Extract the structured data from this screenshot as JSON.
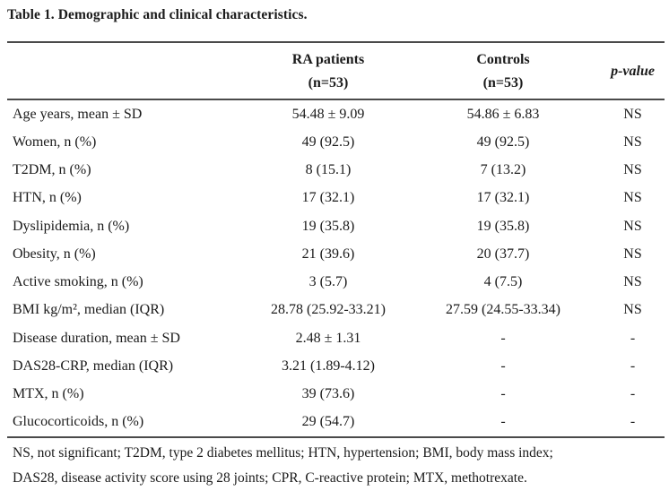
{
  "title": "Table 1. Demographic and clinical characteristics.",
  "table": {
    "header": {
      "col1": "",
      "ra_line1": "RA patients",
      "ra_line2": "(n=53)",
      "controls_line1": "Controls",
      "controls_line2": "(n=53)",
      "p_label": "p-value"
    },
    "rows": [
      {
        "label": "Age years, mean ± SD",
        "ra": "54.48 ± 9.09",
        "controls": "54.86 ± 6.83",
        "p": "NS"
      },
      {
        "label": "Women, n (%)",
        "ra": "49 (92.5)",
        "controls": "49 (92.5)",
        "p": "NS"
      },
      {
        "label": "T2DM, n (%)",
        "ra": "8 (15.1)",
        "controls": "7 (13.2)",
        "p": "NS"
      },
      {
        "label": "HTN, n (%)",
        "ra": "17 (32.1)",
        "controls": "17 (32.1)",
        "p": "NS"
      },
      {
        "label": "Dyslipidemia, n (%)",
        "ra": "19 (35.8)",
        "controls": "19 (35.8)",
        "p": "NS"
      },
      {
        "label": "Obesity, n (%)",
        "ra": "21 (39.6)",
        "controls": "20 (37.7)",
        "p": "NS"
      },
      {
        "label": "Active smoking, n (%)",
        "ra": "3 (5.7)",
        "controls": "4 (7.5)",
        "p": "NS"
      },
      {
        "label": "BMI kg/m², median (IQR)",
        "ra": "28.78 (25.92-33.21)",
        "controls": "27.59 (24.55-33.34)",
        "p": "NS"
      },
      {
        "label": "Disease duration, mean ± SD",
        "ra": "2.48 ± 1.31",
        "controls": "-",
        "p": "-"
      },
      {
        "label": "DAS28-CRP, median (IQR)",
        "ra": "3.21 (1.89-4.12)",
        "controls": "-",
        "p": "-"
      },
      {
        "label": "MTX, n (%)",
        "ra": "39 (73.6)",
        "controls": "-",
        "p": "-"
      },
      {
        "label": "Glucocorticoids, n (%)",
        "ra": "29 (54.7)",
        "controls": "-",
        "p": "-"
      }
    ]
  },
  "footnote": {
    "line1": "NS, not significant; T2DM, type 2 diabetes mellitus; HTN, hypertension; BMI, body mass index;",
    "line2": "DAS28, disease activity score using 28 joints; CPR, C-reactive protein; MTX, methotrexate."
  },
  "colors": {
    "text": "#1b1b1b",
    "rule": "#4a4a4a",
    "background": "#ffffff"
  }
}
